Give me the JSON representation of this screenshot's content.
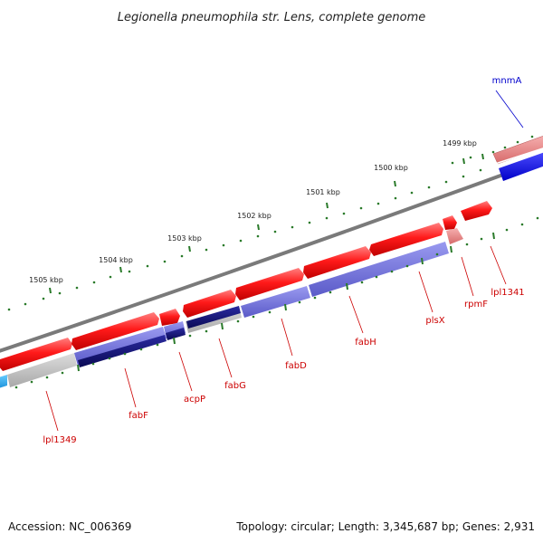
{
  "title": "Legionella pneumophila str. Lens, complete genome",
  "footer": {
    "accession": "Accession: NC_006369",
    "topology": "Topology: circular; Length: 3,345,687 bp; Genes: 2,931"
  },
  "kbp_labels": [
    "1499 kbp",
    "1500 kbp",
    "1501 kbp",
    "1502 kbp",
    "1503 kbp",
    "1504 kbp",
    "1505 kbp"
  ],
  "genes": [
    {
      "name": "mnmA",
      "color": "#0000cc"
    },
    {
      "name": "lpl1341",
      "color": "#cc0000"
    },
    {
      "name": "rpmF",
      "color": "#cc0000"
    },
    {
      "name": "plsX",
      "color": "#cc0000"
    },
    {
      "name": "fabH",
      "color": "#cc0000"
    },
    {
      "name": "fabD",
      "color": "#cc0000"
    },
    {
      "name": "fabG",
      "color": "#cc0000"
    },
    {
      "name": "acpP",
      "color": "#cc0000"
    },
    {
      "name": "fabF",
      "color": "#cc0000"
    },
    {
      "name": "lpl1349",
      "color": "#cc0000"
    }
  ],
  "colors": {
    "forward_cds": "#ee1111",
    "reverse_cds": "#0000ee",
    "protein_blue": "#7070d8",
    "dark_blue": "#1a1a80",
    "gray_track": "#bbbbbb",
    "backbone": "#777777",
    "tick_green": "#2a7a2a"
  }
}
